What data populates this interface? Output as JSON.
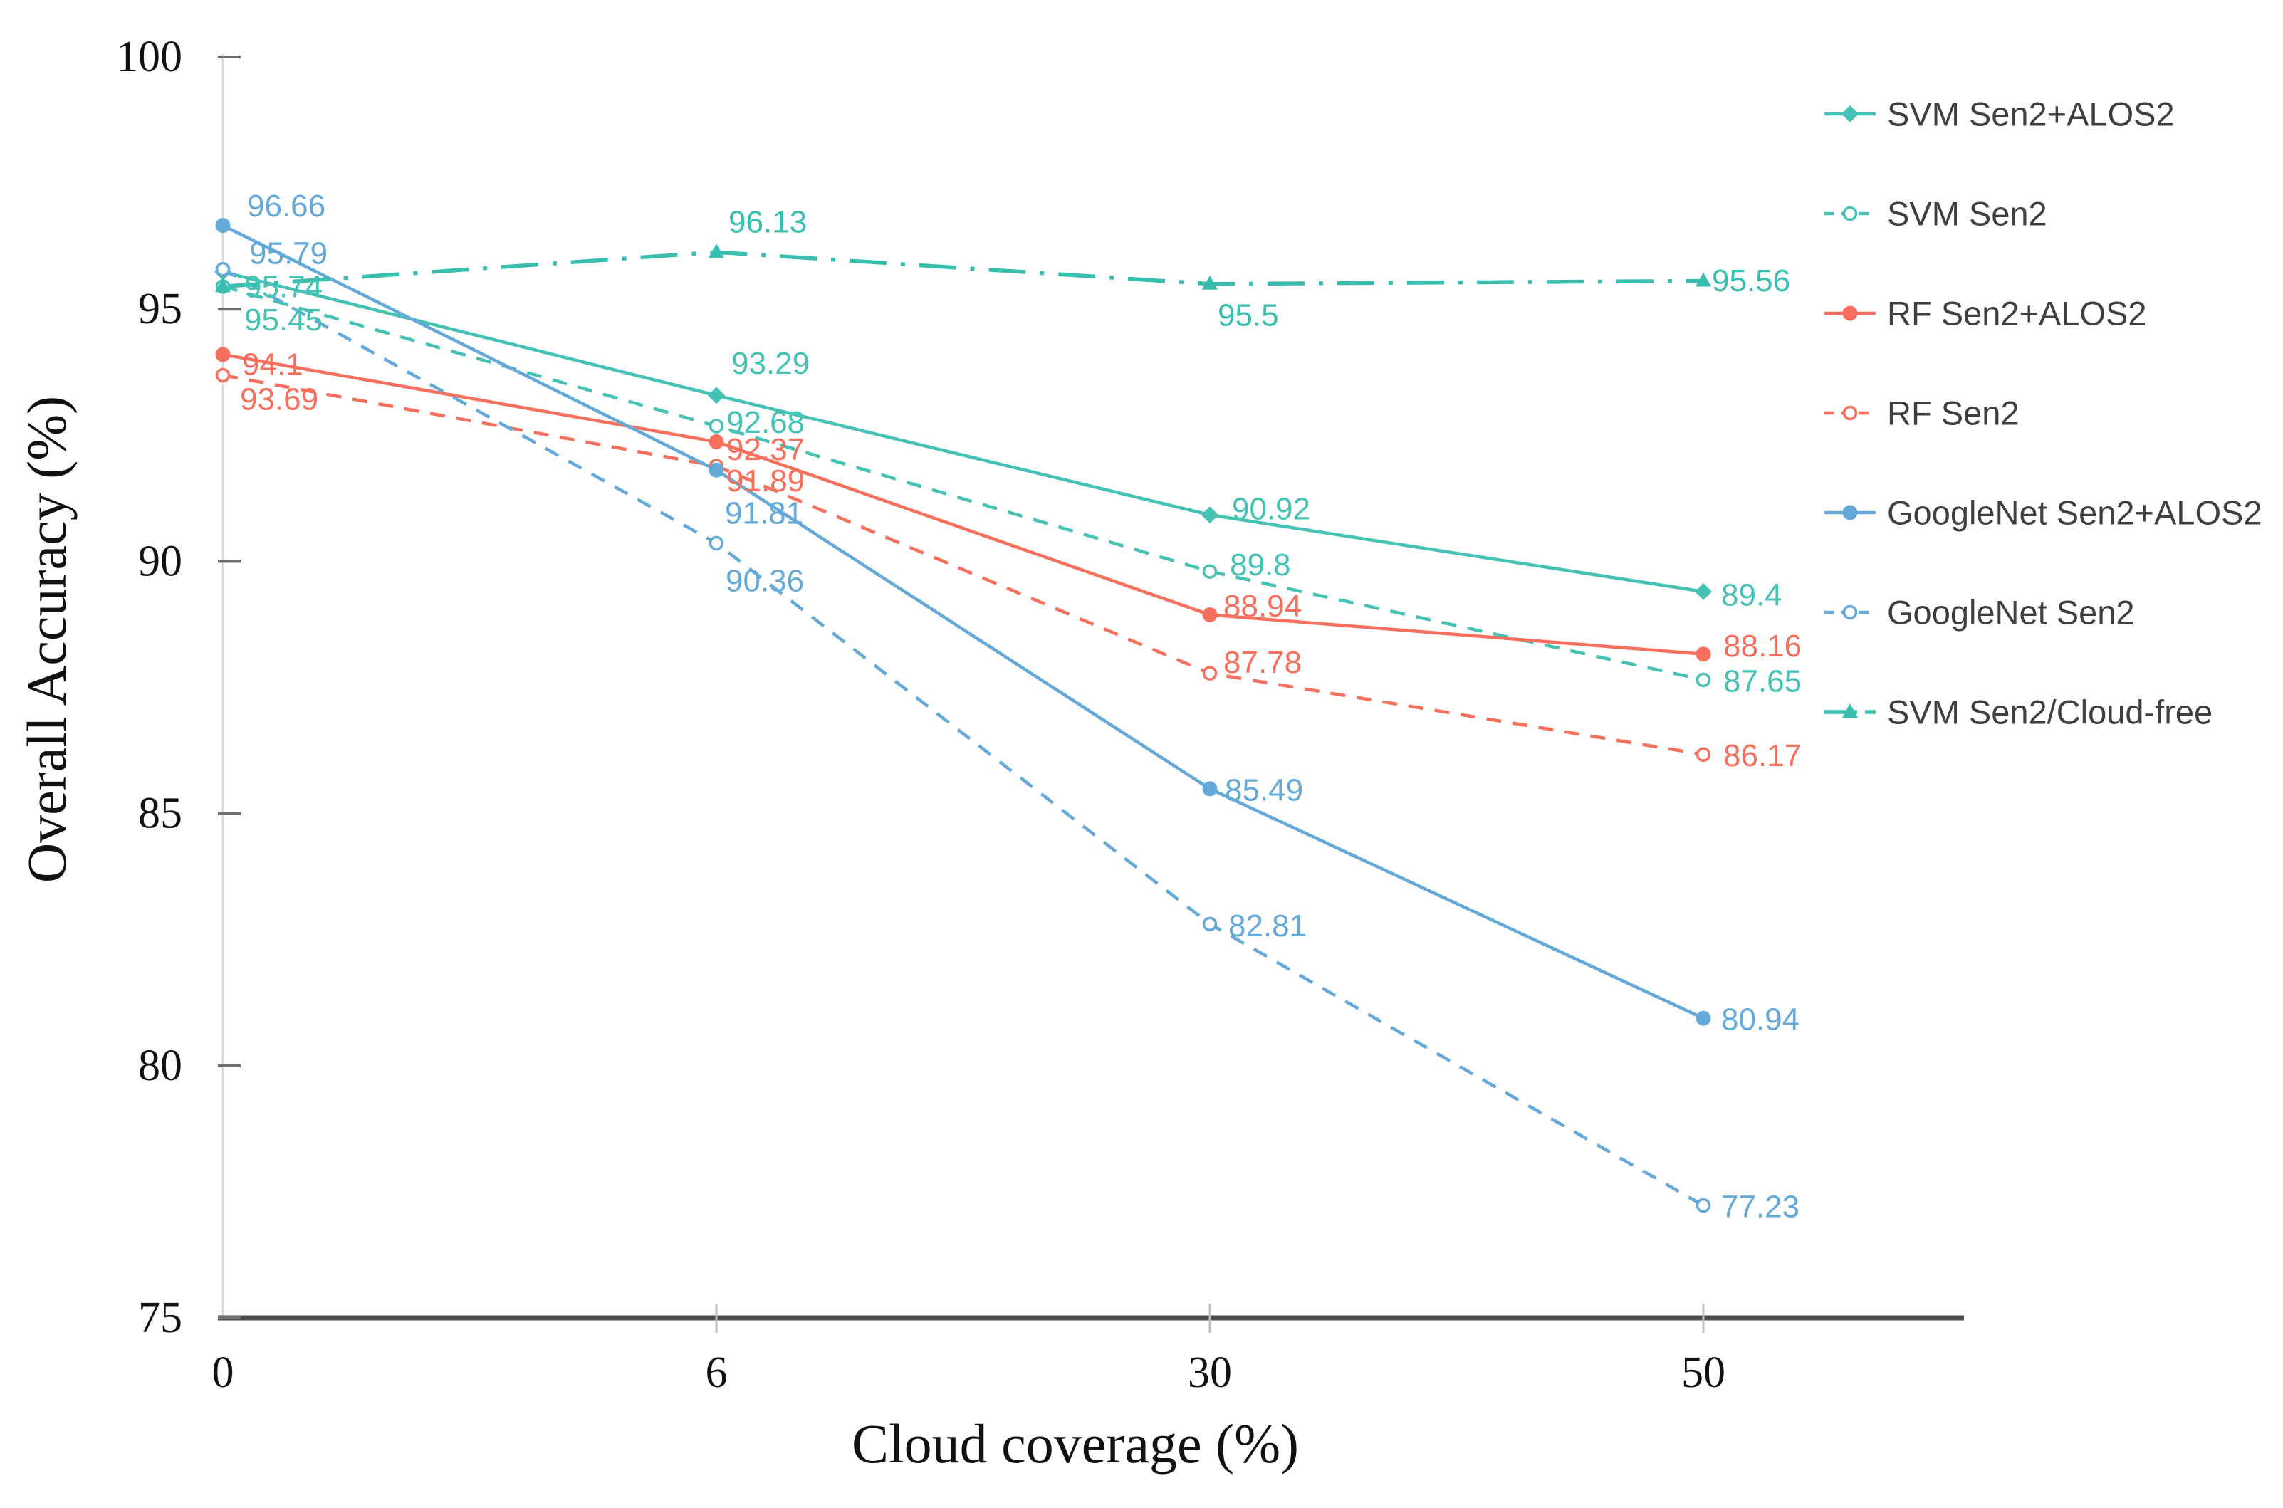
{
  "chart_data": {
    "type": "line",
    "title": "",
    "xlabel": "Cloud coverage (%)",
    "ylabel": "Overall Accuracy (%)",
    "x_categories": [
      "0",
      "6",
      "30",
      "50"
    ],
    "y_ticks": [
      "75",
      "80",
      "85",
      "90",
      "95",
      "100"
    ],
    "ylim": [
      75,
      100
    ],
    "grid": false,
    "legend_position": "right",
    "axis_colors": {
      "x_axis": "#4A4A4A",
      "y_axis": "#D9D9D9",
      "tick": "#6E6E6E",
      "minor_tick": "#BFBFBF",
      "tick_label": "#111111",
      "legend_text": "#3F3F3F"
    },
    "series": [
      {
        "name": "SVM Sen2+ALOS2",
        "color": "#45C2B4",
        "line": "solid",
        "marker": "diamond",
        "values": [
          95.74,
          93.29,
          90.92,
          89.4
        ],
        "labels": [
          "95.74",
          "93.29",
          "90.92",
          "89.4"
        ],
        "label_offsets": [
          [
            30,
            21
          ],
          [
            21,
            -45
          ],
          [
            31,
            -8
          ],
          [
            25,
            5
          ]
        ]
      },
      {
        "name": "SVM Sen2",
        "color": "#45C2B4",
        "line": "dashed",
        "marker": "circle-open",
        "values": [
          95.45,
          92.68,
          89.8,
          87.65
        ],
        "labels": [
          "95.45",
          "92.68",
          "89.8",
          "87.65"
        ],
        "label_offsets": [
          [
            30,
            47
          ],
          [
            14,
            -5
          ],
          [
            28,
            -9
          ],
          [
            28,
            2
          ]
        ]
      },
      {
        "name": "RF Sen2+ALOS2",
        "color": "#F7705D",
        "line": "solid",
        "marker": "circle",
        "values": [
          94.1,
          92.37,
          88.94,
          88.16
        ],
        "labels": [
          "94.1",
          "92.37",
          "88.94",
          "88.16"
        ],
        "label_offsets": [
          [
            27,
            14
          ],
          [
            14,
            11
          ],
          [
            19,
            -12
          ],
          [
            28,
            -11
          ]
        ]
      },
      {
        "name": "RF Sen2",
        "color": "#F7705D",
        "line": "dashed",
        "marker": "circle-open",
        "values": [
          93.69,
          91.89,
          87.78,
          86.17
        ],
        "labels": [
          "93.69",
          "91.89",
          "87.78",
          "86.17"
        ],
        "label_offsets": [
          [
            24,
            34
          ],
          [
            14,
            21
          ],
          [
            19,
            -15
          ],
          [
            28,
            2
          ]
        ]
      },
      {
        "name": "GoogleNet Sen2+ALOS2",
        "color": "#64A9D7",
        "line": "solid",
        "marker": "circle",
        "values": [
          96.66,
          91.81,
          85.49,
          80.94
        ],
        "labels": [
          "96.66",
          "91.81",
          "85.49",
          "80.94"
        ],
        "label_offsets": [
          [
            34,
            -27
          ],
          [
            12,
            61
          ],
          [
            21,
            2
          ],
          [
            25,
            2
          ]
        ]
      },
      {
        "name": "GoogleNet Sen2",
        "color": "#64A9D7",
        "line": "dashed",
        "marker": "circle-open",
        "values": [
          95.79,
          90.36,
          82.81,
          77.23
        ],
        "labels": [
          "95.79",
          "90.36",
          "82.81",
          "77.23"
        ],
        "label_offsets": [
          [
            37,
            -22
          ],
          [
            13,
            53
          ],
          [
            26,
            3
          ],
          [
            25,
            2
          ]
        ]
      },
      {
        "name": "SVM Sen2/Cloud-free",
        "color": "#38BEAF",
        "line": "dashdot",
        "marker": "triangle",
        "values": [
          95.45,
          96.13,
          95.5,
          95.56
        ],
        "labels": [
          "",
          "96.13",
          "95.5",
          "95.56"
        ],
        "label_offsets": [
          [
            0,
            0
          ],
          [
            17,
            -42
          ],
          [
            11,
            44
          ],
          [
            12,
            0
          ]
        ]
      }
    ]
  }
}
